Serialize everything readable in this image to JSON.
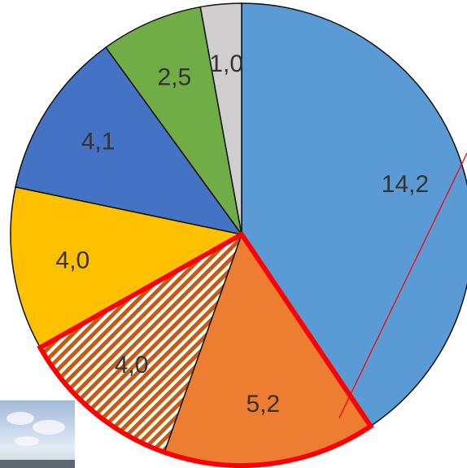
{
  "chart_data": {
    "type": "pie",
    "title": "",
    "slices": [
      {
        "label": "14,2",
        "value": 14.2,
        "color": "#5b9bd5",
        "pattern": "none",
        "highlight": false
      },
      {
        "label": "5,2",
        "value": 5.2,
        "color": "#ed7d31",
        "pattern": "none",
        "highlight": true
      },
      {
        "label": "4,0",
        "value": 4.0,
        "color": "#c55a11",
        "pattern": "diagonal-stripes",
        "highlight": true
      },
      {
        "label": "4,0",
        "value": 4.0,
        "color": "#ffc000",
        "pattern": "none",
        "highlight": false
      },
      {
        "label": "4,1",
        "value": 4.1,
        "color": "#4472c4",
        "pattern": "none",
        "highlight": false
      },
      {
        "label": "2,5",
        "value": 2.5,
        "color": "#70ad47",
        "pattern": "none",
        "highlight": false
      },
      {
        "label": "1,0",
        "value": 1.0,
        "color": "#d0cece",
        "pattern": "none",
        "highlight": false
      }
    ],
    "start_angle": "12 o'clock",
    "direction": "clockwise",
    "highlight_color": "#ff0000",
    "legend": "none",
    "grid": false
  }
}
